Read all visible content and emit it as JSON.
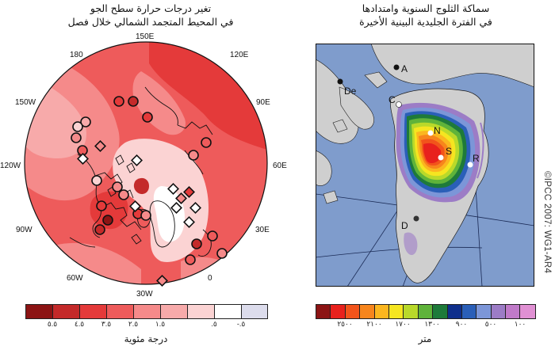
{
  "left_panel": {
    "title_line1": "تغير درجات حرارة سطح الجو",
    "title_line2": "في المحيط المتجمد الشمالي خلال فصل",
    "lon_labels": {
      "e150": "150E",
      "e120": "120E",
      "e90": "90E",
      "e60": "60E",
      "e30": "30E",
      "e0": "0",
      "w30": "30W",
      "w60": "60W",
      "w90": "90W",
      "w120": "120W",
      "w150": "150W",
      "l180": "180"
    },
    "legend_colors": [
      "#8c1414",
      "#c42a2a",
      "#e43a3a",
      "#ee5b5b",
      "#f58a8a",
      "#f7aaaa",
      "#fbd3d3",
      "#ffffff",
      "#dcdcec"
    ],
    "legend_ticks": [
      "٥.٥",
      "٤.٥",
      "٣.٥",
      "٢.٥",
      "١.٥",
      ".٥",
      "-.٥"
    ],
    "unit": "درجة مئوية"
  },
  "right_panel": {
    "title_line1": "سماكة الثلوج السنوية وامتدادها",
    "title_line2": "في الفترة الجليدية البينية الأخيرة",
    "sites": {
      "a": "A",
      "de": "De",
      "c": "C",
      "n": "N",
      "s": "S",
      "r": "R",
      "d": "D"
    },
    "legend_colors": [
      "#8c1414",
      "#e8211d",
      "#f2541b",
      "#f7851c",
      "#fbb61f",
      "#f5e520",
      "#b9d92a",
      "#5fb33a",
      "#1e7a3a",
      "#0f2f8c",
      "#2a5fb8",
      "#7c96d8",
      "#9c7cc6",
      "#c07ac9",
      "#e090d3"
    ],
    "legend_ticks": [
      "٢٥٠٠",
      "٢١٠٠",
      "١٧٠٠",
      "١٣٠٠",
      "٩٠٠",
      "٥٠٠",
      "١٠٠"
    ],
    "unit": "متر"
  },
  "credit": "©IPCC 2007: WG1-AR4"
}
